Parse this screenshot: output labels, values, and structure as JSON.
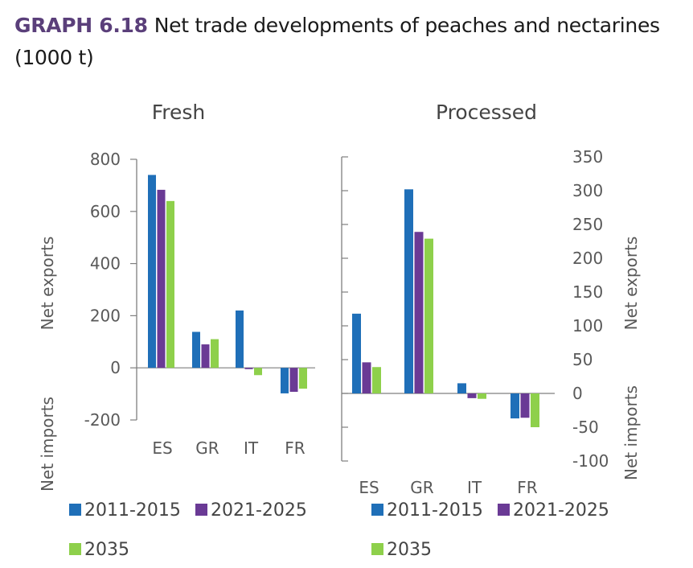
{
  "header": {
    "label": "GRAPH 6.18",
    "title": "Net trade developments of peaches and nectarines (1000 t)"
  },
  "colors": {
    "s2011": "#1f6fb8",
    "s2021": "#6a3a95",
    "s2035": "#8ed04b",
    "axis": "#7f7f7f"
  },
  "chart_data": [
    {
      "type": "bar",
      "title": "Fresh",
      "categories": [
        "ES",
        "GR",
        "IT",
        "FR"
      ],
      "series": [
        {
          "name": "2011-2015",
          "values": [
            740,
            138,
            220,
            -98
          ]
        },
        {
          "name": "2021-2025",
          "values": [
            683,
            90,
            -5,
            -92
          ]
        },
        {
          "name": "2035",
          "values": [
            640,
            110,
            -28,
            -80
          ]
        }
      ],
      "ylim": [
        -200,
        800
      ],
      "yticks": [
        "800",
        "600",
        "400",
        "200",
        "0",
        "-200"
      ],
      "ylabel_top": "Net exports",
      "ylabel_bottom": "Net imports",
      "axis_side": "left"
    },
    {
      "type": "bar",
      "title": "Processed",
      "categories": [
        "ES",
        "GR",
        "IT",
        "FR"
      ],
      "series": [
        {
          "name": "2011-2015",
          "values": [
            118,
            302,
            15,
            -37
          ]
        },
        {
          "name": "2021-2025",
          "values": [
            46,
            239,
            -7,
            -36
          ]
        },
        {
          "name": "2035",
          "values": [
            39,
            229,
            -8,
            -50
          ]
        }
      ],
      "ylim": [
        -100,
        350
      ],
      "yticks": [
        "350",
        "300",
        "250",
        "200",
        "150",
        "100",
        "50",
        "0",
        "-50",
        "-100"
      ],
      "ylabel_top": "Net exports",
      "ylabel_bottom": "Net imports",
      "axis_side": "right"
    }
  ],
  "legends": [
    {
      "items": [
        "2011-2015",
        "2021-2025",
        "2035"
      ]
    },
    {
      "items": [
        "2011-2015",
        "2021-2025",
        "2035"
      ]
    }
  ]
}
